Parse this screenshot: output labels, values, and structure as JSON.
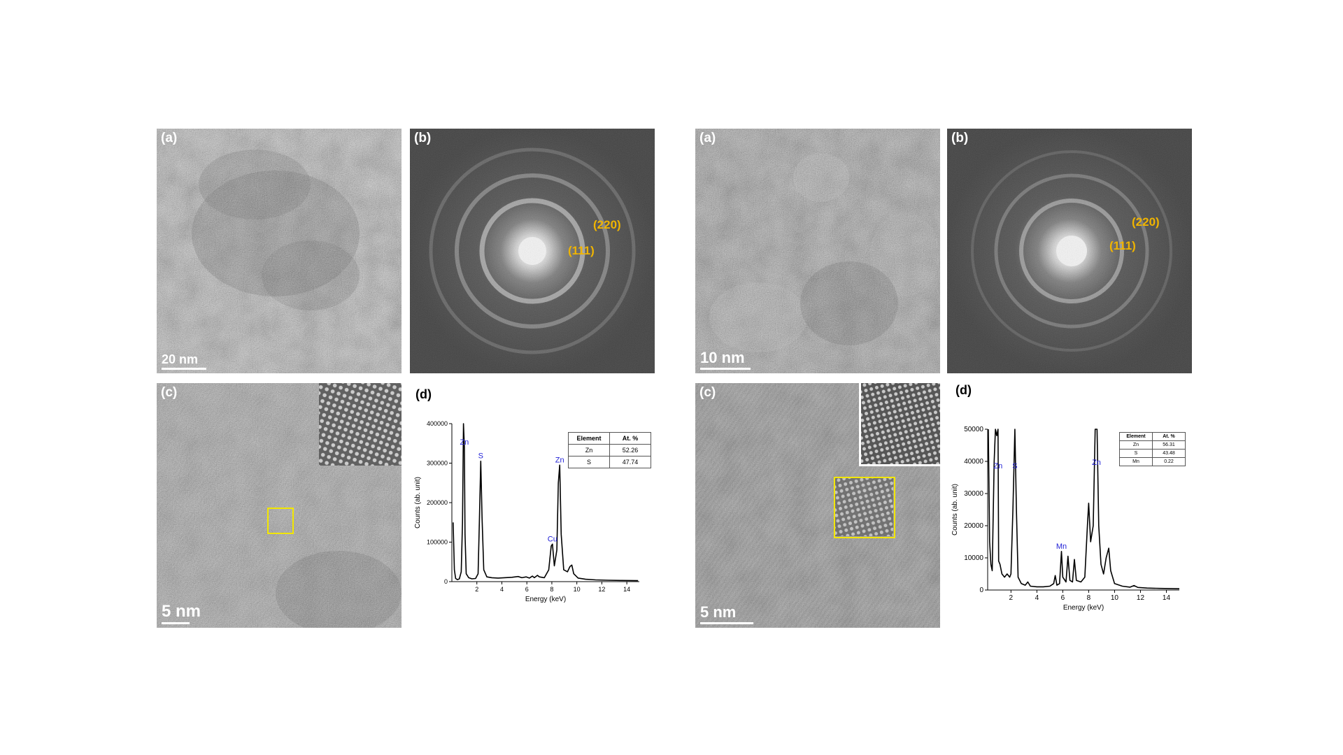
{
  "figure": {
    "left": {
      "panel_a": {
        "label": "(a)",
        "scale_bar": "20 nm"
      },
      "panel_b": {
        "label": "(b)",
        "rings": [
          {
            "label": "(220)"
          },
          {
            "label": "(111)"
          }
        ]
      },
      "panel_c": {
        "label": "(c)",
        "scale_bar": "5 nm"
      },
      "panel_d": {
        "label": "(d)",
        "table": {
          "headers": [
            "Element",
            "At. %"
          ],
          "rows": [
            [
              "Zn",
              "52.26"
            ],
            [
              "S",
              "47.74"
            ]
          ]
        }
      }
    },
    "right": {
      "panel_a": {
        "label": "(a)",
        "scale_bar": "10 nm"
      },
      "panel_b": {
        "label": "(b)",
        "rings": [
          {
            "label": "(220)"
          },
          {
            "label": "(111)"
          }
        ]
      },
      "panel_c": {
        "label": "(c)",
        "scale_bar": "5 nm"
      },
      "panel_d": {
        "label": "(d)",
        "table": {
          "headers": [
            "Element",
            "At. %"
          ],
          "rows": [
            [
              "Zn",
              "56.31"
            ],
            [
              "S",
              "43.48"
            ],
            [
              "Mn",
              "0.22"
            ]
          ]
        }
      }
    }
  },
  "colors": {
    "ring_label": "#f0b400",
    "roi_box": "#f2e600",
    "peak_label": "#1f1fd6"
  },
  "chart_data": [
    {
      "type": "line",
      "title": "",
      "xlabel": "Energy (keV)",
      "ylabel": "Counts (ab. unit)",
      "xlim": [
        0,
        15
      ],
      "ylim": [
        0,
        400000
      ],
      "xticks": [
        2,
        4,
        6,
        8,
        10,
        12,
        14
      ],
      "yticks": [
        0,
        100000,
        200000,
        300000,
        400000
      ],
      "series": [
        {
          "points": [
            [
              0.1,
              150000
            ],
            [
              0.2,
              30000
            ],
            [
              0.3,
              8000
            ],
            [
              0.45,
              5000
            ],
            [
              0.6,
              7000
            ],
            [
              0.75,
              25000
            ],
            [
              0.85,
              150000
            ],
            [
              0.93,
              400000
            ],
            [
              1.0,
              340000
            ],
            [
              1.05,
              120000
            ],
            [
              1.15,
              20000
            ],
            [
              1.35,
              10000
            ],
            [
              1.6,
              7000
            ],
            [
              1.9,
              8000
            ],
            [
              2.1,
              20000
            ],
            [
              2.2,
              150000
            ],
            [
              2.31,
              305000
            ],
            [
              2.42,
              160000
            ],
            [
              2.55,
              30000
            ],
            [
              2.8,
              12000
            ],
            [
              3.2,
              10000
            ],
            [
              3.7,
              9000
            ],
            [
              4.2,
              10000
            ],
            [
              4.8,
              11000
            ],
            [
              5.3,
              13000
            ],
            [
              5.6,
              10000
            ],
            [
              5.95,
              12000
            ],
            [
              6.2,
              9000
            ],
            [
              6.45,
              14000
            ],
            [
              6.6,
              10000
            ],
            [
              6.85,
              16000
            ],
            [
              7.0,
              12000
            ],
            [
              7.4,
              10000
            ],
            [
              7.75,
              30000
            ],
            [
              7.95,
              90000
            ],
            [
              8.05,
              95000
            ],
            [
              8.2,
              40000
            ],
            [
              8.4,
              80000
            ],
            [
              8.52,
              250000
            ],
            [
              8.63,
              295000
            ],
            [
              8.75,
              120000
            ],
            [
              8.95,
              30000
            ],
            [
              9.25,
              25000
            ],
            [
              9.45,
              38000
            ],
            [
              9.6,
              42000
            ],
            [
              9.75,
              20000
            ],
            [
              10.1,
              9000
            ],
            [
              10.7,
              6000
            ],
            [
              11.5,
              4500
            ],
            [
              12.5,
              3500
            ],
            [
              13.5,
              3000
            ],
            [
              14.9,
              2500
            ]
          ]
        }
      ],
      "peak_labels": [
        {
          "text": "Zn",
          "x": 1.0,
          "y": 340000
        },
        {
          "text": "S",
          "x": 2.31,
          "y": 305000
        },
        {
          "text": "Zn",
          "x": 8.63,
          "y": 295000
        },
        {
          "text": "Cu",
          "x": 8.05,
          "y": 95000
        }
      ]
    },
    {
      "type": "line",
      "title": "",
      "xlabel": "Energy (keV)",
      "ylabel": "Counts (ab. unit)",
      "xlim": [
        0.2,
        15
      ],
      "ylim": [
        0,
        50000
      ],
      "xticks": [
        2,
        4,
        6,
        8,
        10,
        12,
        14
      ],
      "yticks": [
        0,
        10000,
        20000,
        30000,
        40000,
        50000
      ],
      "series": [
        {
          "points": [
            [
              0.25,
              50000
            ],
            [
              0.35,
              15000
            ],
            [
              0.45,
              8000
            ],
            [
              0.55,
              6000
            ],
            [
              0.7,
              40000
            ],
            [
              0.8,
              50000
            ],
            [
              0.9,
              48000
            ],
            [
              1.0,
              50000
            ],
            [
              1.05,
              9000
            ],
            [
              1.15,
              8000
            ],
            [
              1.3,
              5000
            ],
            [
              1.5,
              4000
            ],
            [
              1.7,
              5000
            ],
            [
              1.9,
              4000
            ],
            [
              2.0,
              5000
            ],
            [
              2.15,
              25000
            ],
            [
              2.3,
              50000
            ],
            [
              2.42,
              25000
            ],
            [
              2.55,
              4000
            ],
            [
              2.8,
              2000
            ],
            [
              3.1,
              1500
            ],
            [
              3.3,
              2500
            ],
            [
              3.5,
              1200
            ],
            [
              4.0,
              1000
            ],
            [
              4.5,
              1000
            ],
            [
              5.0,
              1200
            ],
            [
              5.3,
              2000
            ],
            [
              5.42,
              4500
            ],
            [
              5.55,
              1500
            ],
            [
              5.75,
              2000
            ],
            [
              5.9,
              12000
            ],
            [
              6.0,
              4000
            ],
            [
              6.25,
              2500
            ],
            [
              6.4,
              10500
            ],
            [
              6.55,
              3000
            ],
            [
              6.75,
              2500
            ],
            [
              6.9,
              9500
            ],
            [
              7.05,
              3000
            ],
            [
              7.4,
              2500
            ],
            [
              7.7,
              4000
            ],
            [
              7.9,
              20000
            ],
            [
              8.0,
              27000
            ],
            [
              8.15,
              15000
            ],
            [
              8.35,
              20000
            ],
            [
              8.5,
              50000
            ],
            [
              8.65,
              50000
            ],
            [
              8.78,
              20000
            ],
            [
              8.95,
              8000
            ],
            [
              9.15,
              5000
            ],
            [
              9.35,
              10000
            ],
            [
              9.55,
              13000
            ],
            [
              9.7,
              6000
            ],
            [
              10.0,
              2000
            ],
            [
              10.6,
              1200
            ],
            [
              11.2,
              900
            ],
            [
              11.5,
              1400
            ],
            [
              11.8,
              800
            ],
            [
              12.5,
              600
            ],
            [
              13.5,
              500
            ],
            [
              15.0,
              400
            ]
          ]
        }
      ],
      "peak_labels": [
        {
          "text": "Zn",
          "x": 1.0,
          "y": 37000
        },
        {
          "text": "S",
          "x": 2.3,
          "y": 37000
        },
        {
          "text": "Zn",
          "x": 8.6,
          "y": 38000
        },
        {
          "text": "Mn",
          "x": 5.9,
          "y": 12000
        }
      ]
    }
  ]
}
